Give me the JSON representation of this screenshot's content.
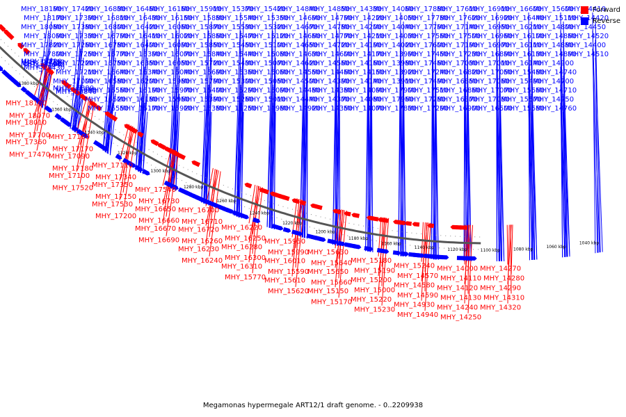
{
  "legend": [
    {
      "label": "Forward",
      "color": "#ff0000"
    },
    {
      "label": "Reverse",
      "color": "#0000ff"
    }
  ],
  "caption": "Megamonas hypermegale ART12/1 draft genome. - 0..2209938",
  "genome_length_kbp": 2209.938,
  "scale_ticks_kbp": [
    1380,
    1360,
    1340,
    1320,
    1300,
    1280,
    1260,
    1240,
    1220,
    1200,
    1180,
    1160,
    1140,
    1120,
    1100,
    1080,
    1060,
    1040
  ],
  "colors": {
    "forward": "#ff0000",
    "reverse": "#0000ff",
    "backbone": "#555555"
  },
  "reverse_genes": [
    "MHY_18190",
    "MHY_18170",
    "MHY_18080",
    "MHY_18090",
    "MHY_17820",
    "MHY_17800",
    "MHY_17760",
    "MHY_17730",
    "MHY_17720",
    "MHY_17640",
    "MHY_17590",
    "MHY_17430",
    "MHY_17420",
    "MHY_17390",
    "MHY_17380",
    "MHY_17330",
    "MHY_17260",
    "MHY_17250",
    "MHY_17220",
    "MHY_17210",
    "MHY_17000",
    "MHY_16980",
    "MHY_16880",
    "MHY_16840",
    "MHY_16830",
    "MHY_16810",
    "MHY_16800",
    "MHY_16790",
    "MHY_16780",
    "MHY_16770",
    "MHY_16750",
    "MHY_16640",
    "MHY_16580",
    "MHY_16560",
    "MHY_16520",
    "MHY_16550",
    "MHY_16460",
    "MHY_16430",
    "MHY_16420",
    "MHY_16410",
    "MHY_16400",
    "MHY_16390",
    "MHY_16350",
    "MHY_16340",
    "MHY_16200",
    "MHY_16190",
    "MHY_16180",
    "MHY_16170",
    "MHY_16160",
    "MHY_16150",
    "MHY_16060",
    "MHY_16020",
    "MHY_16090",
    "MHY_16070",
    "MHY_16050",
    "MHY_16040",
    "MHY_15980",
    "MHY_15970",
    "MHY_15960",
    "MHY_15920",
    "MHY_15910",
    "MHY_15880",
    "MHY_15870",
    "MHY_15860",
    "MHY_15850",
    "MHY_15840",
    "MHY_15720",
    "MHY_15690",
    "MHY_15790",
    "MHY_15400",
    "MHY_15390",
    "MHY_15380",
    "MHY_15370",
    "MHY_15540",
    "MHY_15530",
    "MHY_15470",
    "MHY_15450",
    "MHY_15440",
    "MHY_15430",
    "MHY_15360",
    "MHY_15300",
    "MHY_15290",
    "MHY_15260",
    "MHY_15250",
    "MHY_15420",
    "MHY_15350",
    "MHY_15320",
    "MHY_15120",
    "MHY_15100",
    "MHY_15080",
    "MHY_15070",
    "MHY_15060",
    "MHY_15050",
    "MHY_15090",
    "MHY_15010",
    "MHY_14980",
    "MHY_14840",
    "MHY_14690",
    "MHY_14670",
    "MHY_14660",
    "MHY_14650",
    "MHY_14630",
    "MHY_14620",
    "MHY_14550",
    "MHY_14500",
    "MHY_14480",
    "MHY_14440",
    "MHY_14920",
    "MHY_14850",
    "MHY_14790",
    "MHY_14780",
    "MHY_14770",
    "MHY_14720",
    "MHY_14600",
    "MHY_14560",
    "MHY_14460",
    "MHY_14390",
    "MHY_14380",
    "MHY_14370",
    "MHY_14350",
    "MHY_14330",
    "MHY_14220",
    "MHY_14200",
    "MHY_14210",
    "MHY_14190",
    "MHY_14170",
    "MHY_14160",
    "MHY_14150",
    "MHY_14140",
    "MHY_14090",
    "MHY_14080",
    "MHY_14070",
    "MHY_14060",
    "MHY_14050",
    "MHY_14040",
    "MHY_14030",
    "MHY_14020",
    "MHY_13990",
    "MHY_13980",
    "MHY_13920",
    "MHY_13910",
    "MHY_17900",
    "MHY_17960",
    "MHY_17830",
    "MHY_17880",
    "MHY_17780",
    "MHY_17790",
    "MHY_17560",
    "MHY_17600",
    "MHY_17450",
    "MHY_17460",
    "MHY_17240",
    "MHY_17490",
    "MHY_17510",
    "MHY_17280",
    "MHY_17290",
    "MHY_17610",
    "MHY_17620",
    "MHY_17140",
    "MHY_17500",
    "MHY_17190",
    "MHY_17230",
    "MHY_17030",
    "MHY_16820",
    "MHY_16850",
    "MHY_16860",
    "MHY_16870",
    "MHY_16900",
    "MHY_16910",
    "MHY_16920",
    "MHY_16950",
    "MHY_16960",
    "MHY_16970",
    "MHY_16890",
    "MHY_17010",
    "MHY_17050",
    "MHY_17060",
    "MHY_17070",
    "MHY_17080",
    "MHY_16500",
    "MHY_16600",
    "MHY_16440",
    "MHY_16210",
    "MHY_16100",
    "MHY_16110",
    "MHY_16130",
    "MHY_16140",
    "MHY_15480",
    "MHY_15490",
    "MHY_15560",
    "MHY_15570",
    "MHY_15580",
    "MHY_15600",
    "MHY_15110",
    "MHY_14800",
    "MHY_14860",
    "MHY_14880",
    "MHY_14890",
    "MHY_14900",
    "MHY_14740",
    "MHY_14700",
    "MHY_14710",
    "MHY_14750",
    "MHY_14760",
    "MHY_14410",
    "MHY_14420",
    "MHY_14450",
    "MHY_14520",
    "MHY_14400",
    "MHY_14510"
  ],
  "forward_genes": [
    "MHY_18160",
    "MHY_18070",
    "MHY_18010",
    "MHY_17700",
    "MHY_17360",
    "MHY_17470",
    "MHY_17160",
    "MHY_17170",
    "MHY_17090",
    "MHY_17180",
    "MHY_17100",
    "MHY_17520",
    "MHY_17110",
    "MHY_17340",
    "MHY_17350",
    "MHY_17150",
    "MHY_17530",
    "MHY_17200",
    "MHY_17540",
    "MHY_16730",
    "MHY_16650",
    "MHY_16660",
    "MHY_16670",
    "MHY_16690",
    "MHY_16700",
    "MHY_16710",
    "MHY_16720",
    "MHY_16260",
    "MHY_16230",
    "MHY_16240",
    "MHY_16220",
    "MHY_16250",
    "MHY_16280",
    "MHY_16300",
    "MHY_16310",
    "MHY_15770",
    "MHY_15950",
    "MHY_15990",
    "MHY_16010",
    "MHY_15590",
    "MHY_15610",
    "MHY_15620",
    "MHY_15630",
    "MHY_15640",
    "MHY_15650",
    "MHY_15660",
    "MHY_15150",
    "MHY_15170",
    "MHY_15180",
    "MHY_15190",
    "MHY_15200",
    "MHY_15000",
    "MHY_15220",
    "MHY_15230",
    "MHY_15240",
    "MHY_14570",
    "MHY_14580",
    "MHY_14590",
    "MHY_14930",
    "MHY_14940",
    "MHY_14000",
    "MHY_14110",
    "MHY_14120",
    "MHY_14130",
    "MHY_14240",
    "MHY_14250",
    "MHY_14270",
    "MHY_14280",
    "MHY_14290",
    "MHY_14310",
    "MHY_14320"
  ]
}
